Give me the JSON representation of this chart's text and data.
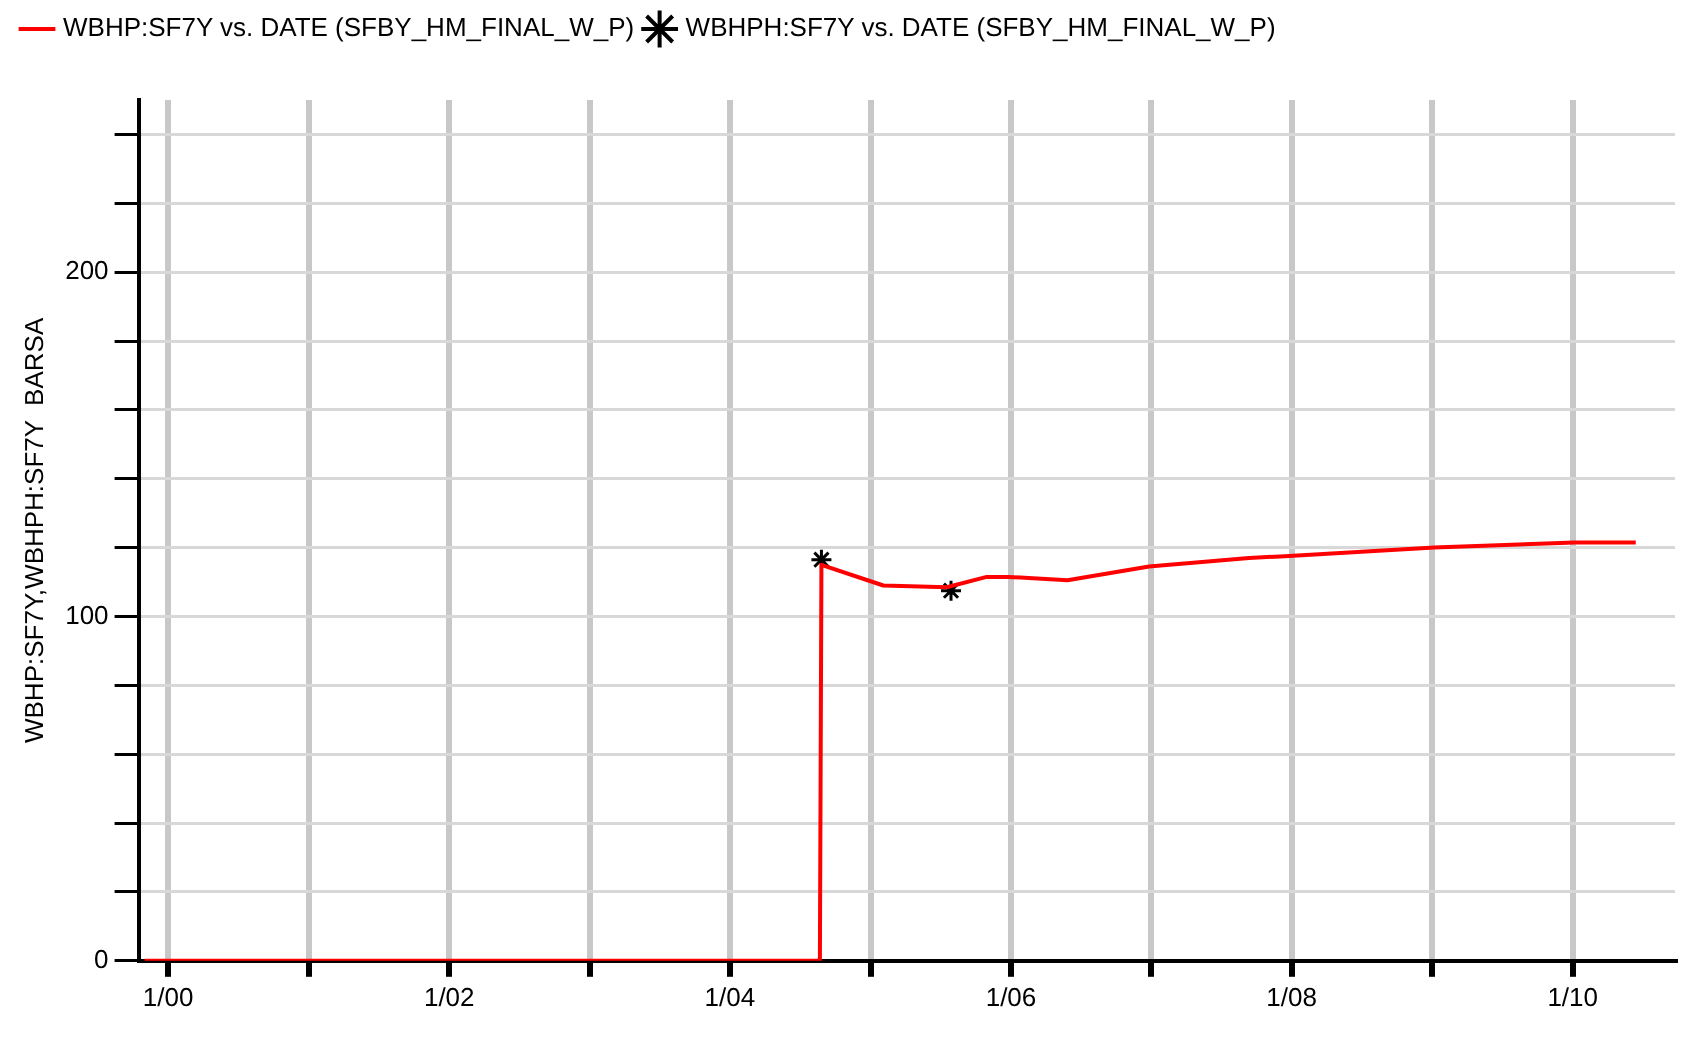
{
  "chart_data": {
    "type": "line",
    "series": [
      {
        "name": "WBHP:SF7Y vs. DATE (SFBY_HM_FINAL_W_P)",
        "color": "#ff0000",
        "marker": "none",
        "x": [
          "1999-11-01",
          "2004-08-22",
          "2004-08-26",
          "2005-02-03",
          "2005-07-18",
          "2005-10-30",
          "2005-12-26",
          "2006-05-28",
          "2006-12-26",
          "2007-09-12",
          "2007-12-14",
          "2009-01-06",
          "2010-01-06",
          "2010-06-14"
        ],
        "values": [
          0,
          0,
          115,
          109,
          108.5,
          111.5,
          111.5,
          110.5,
          114.5,
          117,
          117.5,
          120,
          121.5,
          121.5
        ]
      },
      {
        "name": "WBHPH:SF7Y vs. DATE (SFBY_HM_FINAL_W_P)",
        "type": "scatter",
        "color": "#000000",
        "marker": "cross",
        "x": [
          "2004-08-26",
          "2005-07-29"
        ],
        "values": [
          116.5,
          107.5
        ]
      }
    ],
    "ylabel": "WBHP:SF7Y,WBHPH:SF7Y  BARSA",
    "xlim": [
      "1999-10-16",
      "2010-09-24"
    ],
    "xticks": [
      {
        "value": "2000-01-01",
        "label": "1/00"
      },
      {
        "value": "2001-01-01",
        "label": null
      },
      {
        "value": "2002-01-01",
        "label": "1/02"
      },
      {
        "value": "2003-01-01",
        "label": null
      },
      {
        "value": "2004-01-01",
        "label": "1/04"
      },
      {
        "value": "2005-01-01",
        "label": null
      },
      {
        "value": "2006-01-01",
        "label": "1/06"
      },
      {
        "value": "2007-01-01",
        "label": null
      },
      {
        "value": "2008-01-01",
        "label": "1/08"
      },
      {
        "value": "2009-01-01",
        "label": null
      },
      {
        "value": "2010-01-01",
        "label": "1/10"
      }
    ],
    "ylim": [
      0,
      250
    ],
    "yticks": [
      0,
      {
        "value": 20,
        "label": null
      },
      {
        "value": 40,
        "label": null
      },
      {
        "value": 60,
        "label": null
      },
      {
        "value": 80,
        "label": null
      },
      100,
      {
        "value": 120,
        "label": null
      },
      {
        "value": 140,
        "label": null
      },
      {
        "value": 160,
        "label": null
      },
      {
        "value": 180,
        "label": null
      },
      200,
      {
        "value": 220,
        "label": null
      },
      {
        "value": 240,
        "label": null
      }
    ],
    "grid": true,
    "legend": "top left",
    "line_style": "solid"
  }
}
